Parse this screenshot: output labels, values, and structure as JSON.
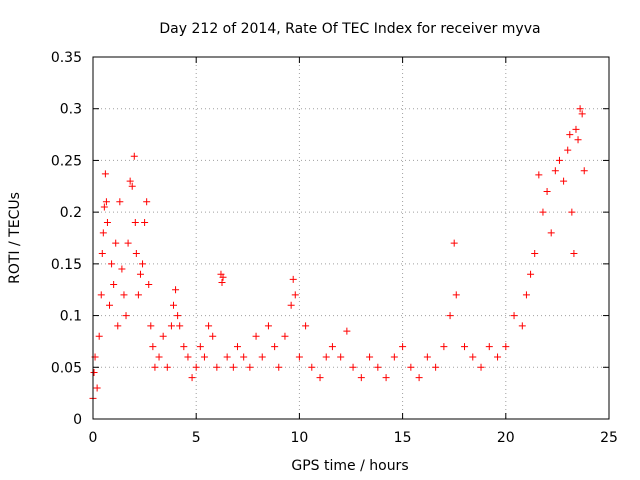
{
  "chart_data": {
    "type": "scatter",
    "title": "Day 212 of 2014, Rate Of TEC Index for receiver myva",
    "xlabel": "GPS time / hours",
    "ylabel": "ROTI / TECUs",
    "xlim": [
      0,
      25
    ],
    "ylim": [
      0,
      0.35
    ],
    "xticks": [
      "0",
      "5",
      "10",
      "15",
      "20",
      "25"
    ],
    "yticks": [
      "0",
      "0.05",
      "0.1",
      "0.15",
      "0.2",
      "0.25",
      "0.3",
      "0.35"
    ],
    "grid": true,
    "marker": "plus",
    "color": "#ff0000",
    "series": [
      {
        "values": [
          [
            0.0,
            0.02
          ],
          [
            0.05,
            0.045
          ],
          [
            0.1,
            0.06
          ],
          [
            0.2,
            0.03
          ],
          [
            0.3,
            0.08
          ],
          [
            0.4,
            0.12
          ],
          [
            0.45,
            0.16
          ],
          [
            0.5,
            0.18
          ],
          [
            0.55,
            0.205
          ],
          [
            0.6,
            0.237
          ],
          [
            0.65,
            0.21
          ],
          [
            0.7,
            0.19
          ],
          [
            0.8,
            0.11
          ],
          [
            0.9,
            0.15
          ],
          [
            1.0,
            0.13
          ],
          [
            1.1,
            0.17
          ],
          [
            1.2,
            0.09
          ],
          [
            1.3,
            0.21
          ],
          [
            1.4,
            0.145
          ],
          [
            1.5,
            0.12
          ],
          [
            1.6,
            0.1
          ],
          [
            1.7,
            0.17
          ],
          [
            1.8,
            0.23
          ],
          [
            1.9,
            0.225
          ],
          [
            2.0,
            0.254
          ],
          [
            2.05,
            0.19
          ],
          [
            2.1,
            0.16
          ],
          [
            2.2,
            0.12
          ],
          [
            2.3,
            0.14
          ],
          [
            2.4,
            0.15
          ],
          [
            2.5,
            0.19
          ],
          [
            2.6,
            0.21
          ],
          [
            2.7,
            0.13
          ],
          [
            2.8,
            0.09
          ],
          [
            2.9,
            0.07
          ],
          [
            3.0,
            0.05
          ],
          [
            3.2,
            0.06
          ],
          [
            3.4,
            0.08
          ],
          [
            3.6,
            0.05
          ],
          [
            3.8,
            0.09
          ],
          [
            3.9,
            0.11
          ],
          [
            4.0,
            0.125
          ],
          [
            4.1,
            0.1
          ],
          [
            4.2,
            0.09
          ],
          [
            4.4,
            0.07
          ],
          [
            4.6,
            0.06
          ],
          [
            4.8,
            0.04
          ],
          [
            5.0,
            0.05
          ],
          [
            5.2,
            0.07
          ],
          [
            5.4,
            0.06
          ],
          [
            5.6,
            0.09
          ],
          [
            5.8,
            0.08
          ],
          [
            6.0,
            0.05
          ],
          [
            6.2,
            0.14
          ],
          [
            6.25,
            0.132
          ],
          [
            6.3,
            0.137
          ],
          [
            6.5,
            0.06
          ],
          [
            6.8,
            0.05
          ],
          [
            7.0,
            0.07
          ],
          [
            7.3,
            0.06
          ],
          [
            7.6,
            0.05
          ],
          [
            7.9,
            0.08
          ],
          [
            8.2,
            0.06
          ],
          [
            8.5,
            0.09
          ],
          [
            8.8,
            0.07
          ],
          [
            9.0,
            0.05
          ],
          [
            9.3,
            0.08
          ],
          [
            9.6,
            0.11
          ],
          [
            9.7,
            0.135
          ],
          [
            9.8,
            0.12
          ],
          [
            10.0,
            0.06
          ],
          [
            10.3,
            0.09
          ],
          [
            10.6,
            0.05
          ],
          [
            11.0,
            0.04
          ],
          [
            11.3,
            0.06
          ],
          [
            11.6,
            0.07
          ],
          [
            12.0,
            0.06
          ],
          [
            12.3,
            0.085
          ],
          [
            12.6,
            0.05
          ],
          [
            13.0,
            0.04
          ],
          [
            13.4,
            0.06
          ],
          [
            13.8,
            0.05
          ],
          [
            14.2,
            0.04
          ],
          [
            14.6,
            0.06
          ],
          [
            15.0,
            0.07
          ],
          [
            15.4,
            0.05
          ],
          [
            15.8,
            0.04
          ],
          [
            16.2,
            0.06
          ],
          [
            16.6,
            0.05
          ],
          [
            17.0,
            0.07
          ],
          [
            17.3,
            0.1
          ],
          [
            17.5,
            0.17
          ],
          [
            17.6,
            0.12
          ],
          [
            18.0,
            0.07
          ],
          [
            18.4,
            0.06
          ],
          [
            18.8,
            0.05
          ],
          [
            19.2,
            0.07
          ],
          [
            19.6,
            0.06
          ],
          [
            20.0,
            0.07
          ],
          [
            20.4,
            0.1
          ],
          [
            20.8,
            0.09
          ],
          [
            21.0,
            0.12
          ],
          [
            21.2,
            0.14
          ],
          [
            21.4,
            0.16
          ],
          [
            21.6,
            0.236
          ],
          [
            21.8,
            0.2
          ],
          [
            22.0,
            0.22
          ],
          [
            22.2,
            0.18
          ],
          [
            22.4,
            0.24
          ],
          [
            22.6,
            0.25
          ],
          [
            22.8,
            0.23
          ],
          [
            23.0,
            0.26
          ],
          [
            23.1,
            0.275
          ],
          [
            23.2,
            0.2
          ],
          [
            23.3,
            0.16
          ],
          [
            23.4,
            0.28
          ],
          [
            23.5,
            0.27
          ],
          [
            23.6,
            0.3
          ],
          [
            23.7,
            0.295
          ],
          [
            23.8,
            0.24
          ]
        ]
      }
    ]
  }
}
